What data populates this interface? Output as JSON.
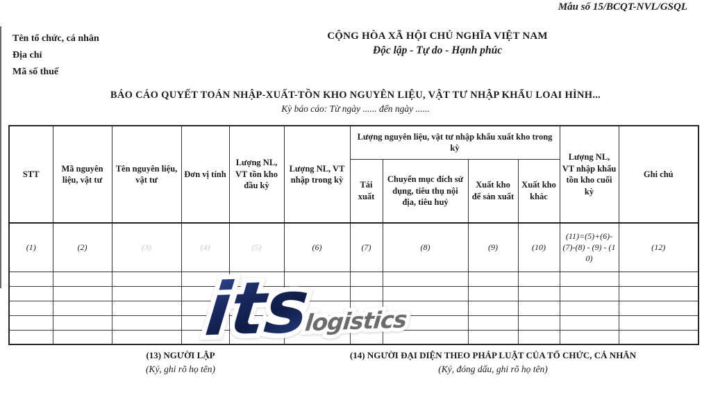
{
  "form_no": "Mẫu số 15/BCQT-NVL/GSQL",
  "org_block": {
    "line1": "Tên tổ chức, cá nhân",
    "line2": "Địa chỉ",
    "line3": "Mã số thuế"
  },
  "national_header": {
    "line1": "CỘNG HÒA XÃ HỘI CHỦ NGHĨA VIỆT NAM",
    "line2": "Độc lập - Tự do - Hạnh phúc"
  },
  "title": "BÁO CÁO QUYẾT TOÁN NHẬP-XUẤT-TỒN KHO NGUYÊN LIỆU, VẬT TƯ NHẬP KHẨU LOAI HÌNH...",
  "subtitle": "Kỳ báo cáo: Từ ngày ...... đến ngày ......",
  "table": {
    "headers": {
      "stt": "STT",
      "ma": "Mã nguyên liệu, vật tư",
      "ten": "Tên nguyên liệu, vật tư",
      "dvt": "Đơn vị tính",
      "ton_dau": "Lượng NL, VT tồn kho đầu kỳ",
      "nhap_trong": "Lượng NL, VT nhập trong kỳ",
      "group": "Lượng nguyên liệu, vật tư nhập khẩu xuất kho trong kỳ",
      "tai_xuat": "Tái xuất",
      "chuyen_muc_dich": "Chuyển mục đích sử dụng, tiêu thụ nội địa, tiêu huỷ",
      "xuat_sx": "Xuất kho để sản xuất",
      "xuat_khac": "Xuất kho khác",
      "ton_cuoi": "Lượng NL, VT nhập khẩu tồn kho cuối kỳ",
      "ghi_chu": "Ghi chú"
    },
    "index_row": [
      "(1)",
      "(2)",
      "(3)",
      "(4)",
      "(5)",
      "(6)",
      "(7)",
      "(8)",
      "(9)",
      "(10)",
      "(11)=(5)+(6)-(7)-(8) - (9) - (10)",
      "(12)"
    ],
    "empty_row_count": 5
  },
  "watermark": {
    "text_primary": "its",
    "text_secondary": "logistics",
    "color_primary": "#1c2b5f",
    "color_secondary": "#6b6b6b"
  },
  "footer": {
    "left_title": "(13) NGƯỜI LẬP",
    "left_sub": "(Ký, ghi rõ họ tên)",
    "right_title": "(14) NGƯỜI ĐẠI DIỆN THEO PHÁP LUẬT CỦA TỔ CHỨC, CÁ NHÂN",
    "right_sub": "(Ký, đóng dấu, ghi rõ họ tên)"
  }
}
